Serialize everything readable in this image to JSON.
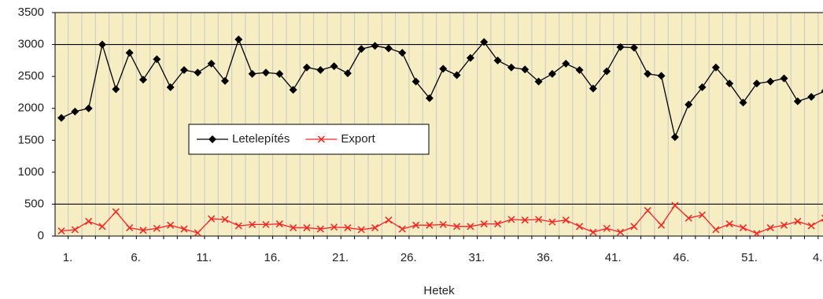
{
  "chart_data": {
    "type": "line",
    "x_label": "Hetek",
    "categories": [
      "1.",
      null,
      null,
      null,
      null,
      "6.",
      null,
      null,
      null,
      null,
      "11.",
      null,
      null,
      null,
      null,
      "16.",
      null,
      null,
      null,
      null,
      "21.",
      null,
      null,
      null,
      null,
      "26.",
      null,
      null,
      null,
      null,
      "31.",
      null,
      null,
      null,
      null,
      "36.",
      null,
      null,
      null,
      null,
      "41.",
      null,
      null,
      null,
      null,
      "46.",
      null,
      null,
      null,
      null,
      "51.",
      null,
      null,
      null,
      null,
      "4.",
      null
    ],
    "series": [
      {
        "name": "Letelepítés",
        "color": "#000000",
        "marker": "diamond",
        "values": [
          1850,
          1950,
          2000,
          3000,
          2300,
          2870,
          2450,
          2770,
          2330,
          2600,
          2560,
          2700,
          2430,
          3080,
          2540,
          2560,
          2540,
          2290,
          2640,
          2600,
          2660,
          2550,
          2930,
          2980,
          2940,
          2870,
          2420,
          2160,
          2620,
          2520,
          2790,
          3040,
          2750,
          2640,
          2610,
          2420,
          2540,
          2700,
          2600,
          2310,
          2580,
          2960,
          2950,
          2540,
          2510,
          1550,
          2060,
          2330,
          2640,
          2390,
          2090,
          2390,
          2420,
          2470,
          2110,
          2180,
          2270
        ]
      },
      {
        "name": "Export",
        "color": "#ff2020",
        "marker": "x",
        "values": [
          80,
          100,
          230,
          150,
          380,
          130,
          90,
          120,
          170,
          110,
          50,
          270,
          260,
          160,
          180,
          180,
          190,
          130,
          130,
          110,
          140,
          130,
          100,
          130,
          250,
          110,
          170,
          170,
          180,
          150,
          150,
          190,
          190,
          260,
          250,
          260,
          220,
          250,
          150,
          60,
          120,
          60,
          150,
          400,
          170,
          480,
          280,
          330,
          100,
          190,
          130,
          40,
          130,
          170,
          230,
          160,
          280
        ]
      }
    ],
    "ylim": [
      0,
      3500
    ],
    "yticks": [
      0,
      500,
      1000,
      1500,
      2000,
      2500,
      3000,
      3500
    ],
    "hlines": [
      500,
      3000
    ],
    "vertical_grid": true,
    "legend": "center-left"
  }
}
